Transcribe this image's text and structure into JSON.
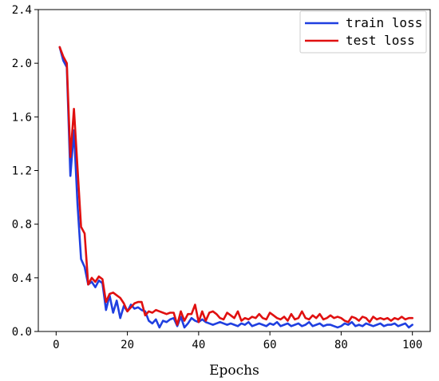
{
  "chart_data": {
    "type": "line",
    "title": "",
    "xlabel": "Epochs",
    "ylabel": "",
    "xlim": [
      -5,
      105
    ],
    "ylim": [
      0,
      2.4
    ],
    "xticks": [
      0,
      20,
      40,
      60,
      80,
      100
    ],
    "xtick_labels": [
      "0",
      "20",
      "40",
      "60",
      "80",
      "100"
    ],
    "yticks": [
      0,
      0.4,
      0.8,
      1.2,
      1.6,
      2.0,
      2.4
    ],
    "ytick_labels": [
      "0.0",
      "0.4",
      "0.8",
      "1.2",
      "1.6",
      "2.0",
      "2.4"
    ],
    "grid": false,
    "legend_position": "top-right",
    "x": [
      1,
      2,
      3,
      4,
      5,
      6,
      7,
      8,
      9,
      10,
      11,
      12,
      13,
      14,
      15,
      16,
      17,
      18,
      19,
      20,
      21,
      22,
      23,
      24,
      25,
      26,
      27,
      28,
      29,
      30,
      31,
      32,
      33,
      34,
      35,
      36,
      37,
      38,
      39,
      40,
      41,
      42,
      43,
      44,
      45,
      46,
      47,
      48,
      49,
      50,
      51,
      52,
      53,
      54,
      55,
      56,
      57,
      58,
      59,
      60,
      61,
      62,
      63,
      64,
      65,
      66,
      67,
      68,
      69,
      70,
      71,
      72,
      73,
      74,
      75,
      76,
      77,
      78,
      79,
      80,
      81,
      82,
      83,
      84,
      85,
      86,
      87,
      88,
      89,
      90,
      91,
      92,
      93,
      94,
      95,
      96,
      97,
      98,
      99,
      100
    ],
    "series": [
      {
        "name": "train loss",
        "color": "#1f3fe0",
        "values": [
          2.12,
          2.02,
          1.97,
          1.16,
          1.5,
          0.95,
          0.54,
          0.48,
          0.35,
          0.37,
          0.33,
          0.38,
          0.36,
          0.16,
          0.27,
          0.14,
          0.23,
          0.1,
          0.19,
          0.15,
          0.2,
          0.17,
          0.18,
          0.16,
          0.15,
          0.08,
          0.06,
          0.09,
          0.03,
          0.08,
          0.07,
          0.09,
          0.1,
          0.04,
          0.11,
          0.03,
          0.06,
          0.1,
          0.08,
          0.07,
          0.09,
          0.07,
          0.06,
          0.05,
          0.06,
          0.07,
          0.06,
          0.05,
          0.06,
          0.05,
          0.04,
          0.06,
          0.05,
          0.07,
          0.04,
          0.05,
          0.06,
          0.05,
          0.04,
          0.06,
          0.05,
          0.07,
          0.04,
          0.05,
          0.06,
          0.04,
          0.05,
          0.06,
          0.04,
          0.05,
          0.07,
          0.04,
          0.05,
          0.06,
          0.04,
          0.05,
          0.05,
          0.04,
          0.03,
          0.04,
          0.06,
          0.05,
          0.07,
          0.04,
          0.05,
          0.04,
          0.06,
          0.05,
          0.04,
          0.05,
          0.06,
          0.04,
          0.05,
          0.05,
          0.06,
          0.04,
          0.05,
          0.06,
          0.03,
          0.05
        ]
      },
      {
        "name": "test loss",
        "color": "#e01010",
        "values": [
          2.12,
          2.05,
          2.0,
          1.3,
          1.66,
          1.22,
          0.78,
          0.73,
          0.35,
          0.4,
          0.37,
          0.41,
          0.39,
          0.22,
          0.28,
          0.29,
          0.27,
          0.25,
          0.21,
          0.15,
          0.18,
          0.21,
          0.22,
          0.22,
          0.12,
          0.15,
          0.14,
          0.16,
          0.15,
          0.14,
          0.13,
          0.14,
          0.14,
          0.05,
          0.15,
          0.08,
          0.13,
          0.13,
          0.2,
          0.07,
          0.15,
          0.08,
          0.14,
          0.15,
          0.13,
          0.1,
          0.09,
          0.14,
          0.12,
          0.1,
          0.15,
          0.08,
          0.1,
          0.09,
          0.11,
          0.1,
          0.13,
          0.1,
          0.09,
          0.14,
          0.12,
          0.1,
          0.09,
          0.11,
          0.08,
          0.13,
          0.09,
          0.1,
          0.15,
          0.1,
          0.09,
          0.12,
          0.1,
          0.13,
          0.09,
          0.1,
          0.12,
          0.1,
          0.11,
          0.1,
          0.08,
          0.07,
          0.11,
          0.1,
          0.08,
          0.11,
          0.1,
          0.07,
          0.11,
          0.09,
          0.1,
          0.09,
          0.1,
          0.08,
          0.1,
          0.09,
          0.11,
          0.09,
          0.1,
          0.1
        ]
      }
    ]
  }
}
